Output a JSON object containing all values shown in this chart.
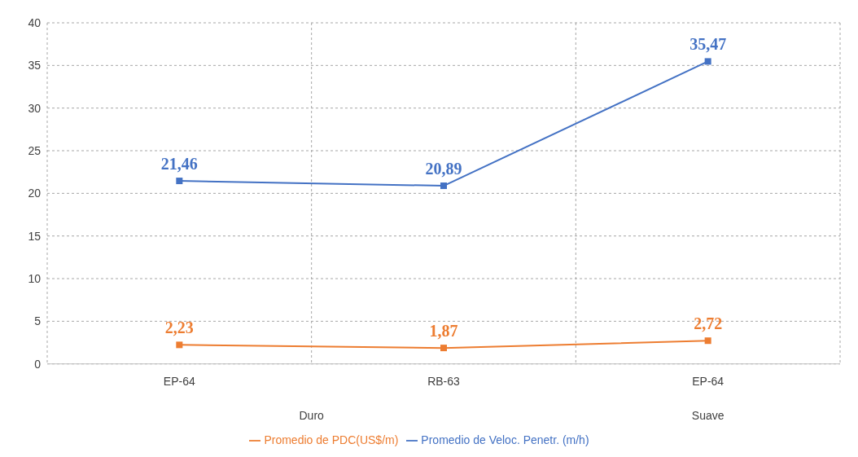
{
  "chart_data": {
    "type": "line",
    "categories": [
      "EP-64",
      "RB-63",
      "EP-64"
    ],
    "series": [
      {
        "name": "Promedio de Veloc. Penetr. (m/h)",
        "color": "#4472c4",
        "values": [
          21.46,
          20.89,
          35.47
        ],
        "value_labels": [
          "21,46",
          "20,89",
          "35,47"
        ]
      },
      {
        "name": "Promedio de PDC(US$/m)",
        "color": "#ed7d31",
        "values": [
          2.23,
          1.87,
          2.72
        ],
        "value_labels": [
          "2,23",
          "1,87",
          "2,72"
        ]
      }
    ],
    "annotations": [
      "Duro",
      "Suave"
    ],
    "ylim": [
      0,
      40
    ],
    "yticks": [
      0,
      5,
      10,
      15,
      20,
      25,
      30,
      35,
      40
    ],
    "grid": true,
    "legend": "bottom",
    "marker": "square",
    "line_style": "solid"
  }
}
